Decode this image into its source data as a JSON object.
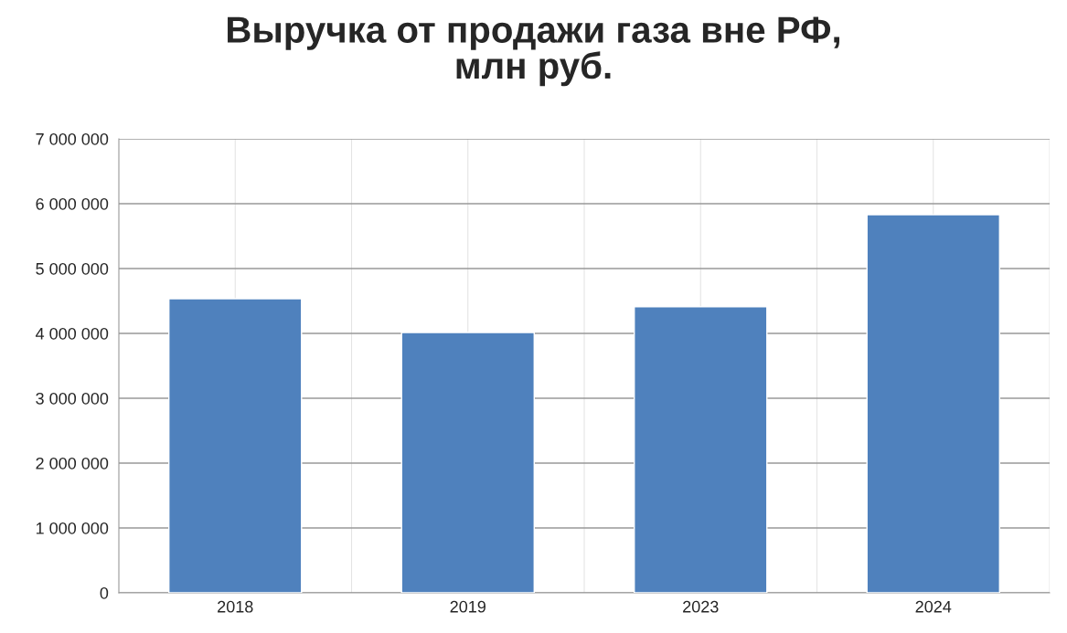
{
  "chart_data": {
    "type": "bar",
    "title": "Выручка от продажи газа вне РФ,\nмлн руб.",
    "categories": [
      "2018",
      "2019",
      "2023",
      "2024"
    ],
    "values": [
      4535000,
      4015000,
      4410000,
      5830000
    ],
    "color": "#4f81bd",
    "ylim": [
      0,
      7000000
    ],
    "yticks": [
      {
        "value": 0,
        "label": "0"
      },
      {
        "value": 1000000,
        "label": "1 000 000"
      },
      {
        "value": 2000000,
        "label": "2 000 000"
      },
      {
        "value": 3000000,
        "label": "3 000 000"
      },
      {
        "value": 4000000,
        "label": "4 000 000"
      },
      {
        "value": 5000000,
        "label": "5 000 000"
      },
      {
        "value": 6000000,
        "label": "6 000 000"
      },
      {
        "value": 7000000,
        "label": "7 000 000"
      }
    ],
    "grid": true
  }
}
